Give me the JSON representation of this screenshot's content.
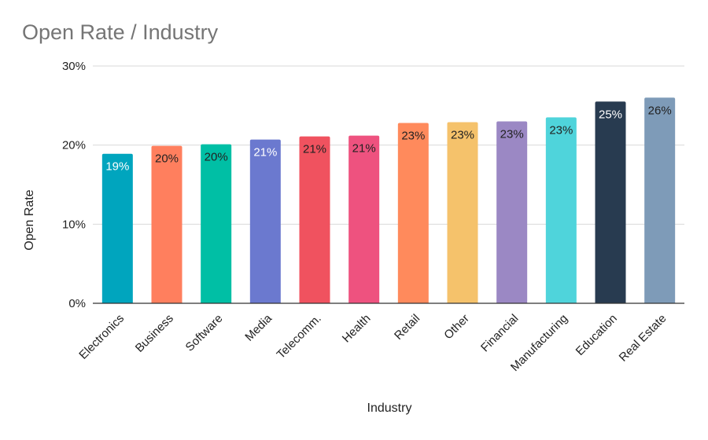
{
  "chart_data": {
    "type": "bar",
    "title": "Open Rate / Industry",
    "xlabel": "Industry",
    "ylabel": "Open Rate",
    "ylim": [
      0,
      30
    ],
    "yticks": [
      0,
      10,
      20,
      30
    ],
    "ytick_labels": [
      "0%",
      "10%",
      "20%",
      "30%"
    ],
    "grid": true,
    "legend": "none",
    "categories": [
      "Electronics",
      "Business",
      "Software",
      "Media",
      "Telecomm.",
      "Health",
      "Retail",
      "Other",
      "Financial",
      "Manufacturing",
      "Education",
      "Real Estate"
    ],
    "values": [
      18.9,
      19.9,
      20.1,
      20.7,
      21.1,
      21.2,
      22.8,
      22.9,
      23.0,
      23.5,
      25.5,
      26.0
    ],
    "data_labels": [
      "19%",
      "20%",
      "20%",
      "21%",
      "21%",
      "21%",
      "23%",
      "23%",
      "23%",
      "23%",
      "25%",
      "26%"
    ],
    "colors": [
      "#00A5BE",
      "#FF7F5E",
      "#00BFA5",
      "#6B79CF",
      "#F0525F",
      "#EE527F",
      "#FF8A5C",
      "#F5C26B",
      "#9B88C4",
      "#4FD4DB",
      "#283B50",
      "#7E9BB8"
    ],
    "label_colors": [
      "#ffffff",
      "#222222",
      "#222222",
      "#ffffff",
      "#222222",
      "#222222",
      "#222222",
      "#222222",
      "#222222",
      "#222222",
      "#ffffff",
      "#222222"
    ]
  }
}
